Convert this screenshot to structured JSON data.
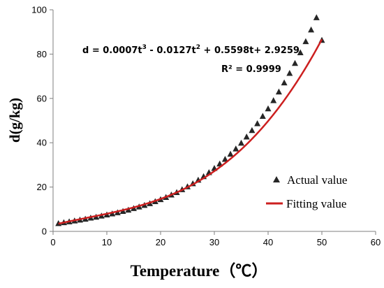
{
  "chart_data": {
    "type": "scatter",
    "xlabel": "Temperature（℃）",
    "ylabel": "d(g/kg)",
    "xlim": [
      0,
      60
    ],
    "ylim": [
      0,
      100
    ],
    "xticks": [
      0,
      10,
      20,
      30,
      40,
      50,
      60
    ],
    "yticks": [
      0,
      20,
      40,
      60,
      80,
      100
    ],
    "grid": false,
    "legend_position": "bottom-right",
    "equation": {
      "prefix": "d = 0.0007t",
      "exp1": "3",
      "mid": " - 0.0127t",
      "exp2": "2",
      "suffix": " + 0.5598t+ 2.9259"
    },
    "r_squared": "R² = 0.9999",
    "series": [
      {
        "name": "Actual value",
        "kind": "scatter",
        "marker": "triangle",
        "color": "#262626",
        "x": [
          1,
          2,
          3,
          4,
          5,
          6,
          7,
          8,
          9,
          10,
          11,
          12,
          13,
          14,
          15,
          16,
          17,
          18,
          19,
          20,
          21,
          22,
          23,
          24,
          25,
          26,
          27,
          28,
          29,
          30,
          31,
          32,
          33,
          34,
          35,
          36,
          37,
          38,
          39,
          40,
          41,
          42,
          43,
          44,
          45,
          46,
          47,
          48,
          49,
          50
        ],
        "y": [
          3.5,
          3.9,
          4.3,
          4.7,
          5.1,
          5.5,
          6.0,
          6.4,
          6.9,
          7.4,
          7.9,
          8.4,
          9.0,
          9.6,
          10.3,
          11.0,
          11.7,
          12.5,
          13.4,
          14.3,
          15.3,
          16.4,
          17.5,
          18.8,
          20.1,
          21.5,
          23.1,
          24.7,
          26.5,
          28.4,
          30.4,
          32.5,
          34.8,
          37.2,
          39.8,
          42.6,
          45.5,
          48.6,
          51.9,
          55.3,
          59.0,
          62.9,
          67.0,
          71.3,
          75.8,
          80.6,
          85.6,
          90.9,
          96.4,
          86.2
        ]
      },
      {
        "name": "Fitting value",
        "kind": "line",
        "color": "#cc1f1f",
        "x_range": [
          1,
          50
        ],
        "coefficients": [
          0.0007,
          -0.0127,
          0.5598,
          2.9259
        ]
      }
    ]
  }
}
